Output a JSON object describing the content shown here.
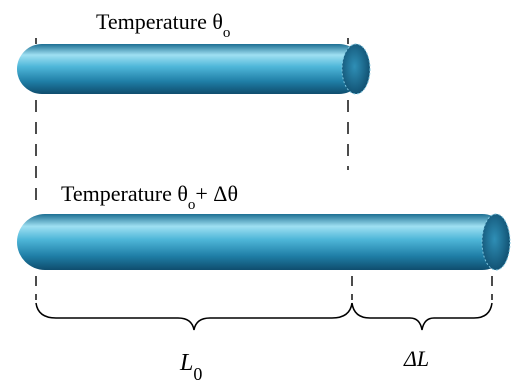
{
  "top_rod": {
    "label_prefix": "Temperature θ",
    "label_sub": "o"
  },
  "bottom_rod": {
    "label_prefix": "Temperature θ",
    "label_sub": "o",
    "label_suffix": "+ Δθ"
  },
  "dimensions": {
    "original_length_symbol": "L",
    "original_length_sub": "0",
    "extension_symbol": "ΔL"
  },
  "colors": {
    "rod_light": "#9fe0f2",
    "rod_mid": "#3aa6cc",
    "rod_dark": "#0f4d6e",
    "line": "#000000"
  }
}
